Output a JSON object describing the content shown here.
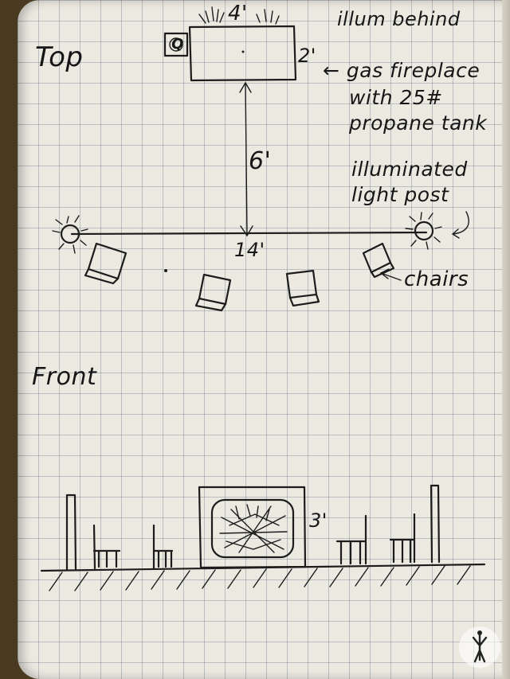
{
  "top_view": {
    "heading": "Top",
    "fireplace_width": "4'",
    "fireplace_depth": "2'",
    "illum_note": "illum behind",
    "fireplace_note": {
      "line1": "← gas fireplace",
      "line2": "with 25#",
      "line3": "propane tank"
    },
    "tank_symbol": "Q",
    "distance": "6'",
    "post_note": {
      "line1": "illuminated",
      "line2": "light post"
    },
    "row_width": "14'",
    "chairs_label": "chairs"
  },
  "front_view": {
    "heading": "Front",
    "fireplace_height": "3'"
  }
}
